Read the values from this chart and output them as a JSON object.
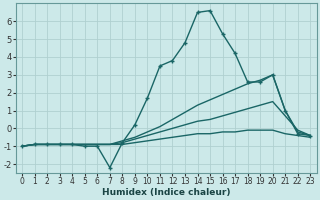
{
  "title": "",
  "xlabel": "Humidex (Indice chaleur)",
  "background_color": "#cce9e9",
  "grid_color": "#b0d0d0",
  "line_color": "#1a6666",
  "xlim": [
    -0.5,
    23.5
  ],
  "ylim": [
    -2.5,
    7.0
  ],
  "xticks": [
    0,
    1,
    2,
    3,
    4,
    5,
    6,
    7,
    8,
    9,
    10,
    11,
    12,
    13,
    14,
    15,
    16,
    17,
    18,
    19,
    20,
    21,
    22,
    23
  ],
  "yticks": [
    -2,
    -1,
    0,
    1,
    2,
    3,
    4,
    5,
    6
  ],
  "series": [
    {
      "x": [
        0,
        1,
        2,
        3,
        4,
        5,
        6,
        7,
        8,
        9,
        10,
        11,
        12,
        13,
        14,
        15,
        16,
        17,
        18,
        19,
        20,
        21,
        22,
        23
      ],
      "y": [
        -1.0,
        -0.9,
        -0.9,
        -0.9,
        -0.9,
        -0.9,
        -0.9,
        -0.9,
        -0.9,
        -0.8,
        -0.7,
        -0.6,
        -0.5,
        -0.4,
        -0.3,
        -0.3,
        -0.2,
        -0.2,
        -0.1,
        -0.1,
        -0.1,
        -0.3,
        -0.4,
        -0.5
      ],
      "marker": false,
      "linewidth": 1.0
    },
    {
      "x": [
        0,
        1,
        2,
        3,
        4,
        5,
        6,
        7,
        8,
        9,
        10,
        11,
        12,
        13,
        14,
        15,
        16,
        17,
        18,
        19,
        20,
        21,
        22,
        23
      ],
      "y": [
        -1.0,
        -0.9,
        -0.9,
        -0.9,
        -0.9,
        -0.9,
        -0.9,
        -0.9,
        -0.8,
        -0.6,
        -0.4,
        -0.2,
        0.0,
        0.2,
        0.4,
        0.5,
        0.7,
        0.9,
        1.1,
        1.3,
        1.5,
        0.7,
        -0.1,
        -0.4
      ],
      "marker": false,
      "linewidth": 1.0
    },
    {
      "x": [
        0,
        1,
        2,
        3,
        4,
        5,
        6,
        7,
        8,
        9,
        10,
        11,
        12,
        13,
        14,
        15,
        16,
        17,
        18,
        19,
        20,
        21,
        22,
        23
      ],
      "y": [
        -1.0,
        -0.9,
        -0.9,
        -0.9,
        -0.9,
        -0.9,
        -0.9,
        -0.9,
        -0.7,
        -0.5,
        -0.2,
        0.1,
        0.5,
        0.9,
        1.3,
        1.6,
        1.9,
        2.2,
        2.5,
        2.7,
        3.0,
        1.0,
        -0.2,
        -0.4
      ],
      "marker": false,
      "linewidth": 1.0
    },
    {
      "x": [
        0,
        1,
        2,
        3,
        4,
        5,
        6,
        7,
        8,
        9,
        10,
        11,
        12,
        13,
        14,
        15,
        16,
        17,
        18,
        19,
        20,
        21,
        22,
        23
      ],
      "y": [
        -1.0,
        -0.9,
        -0.9,
        -0.9,
        -0.9,
        -1.0,
        -1.0,
        -2.2,
        -0.8,
        0.2,
        1.7,
        3.5,
        3.8,
        4.8,
        6.5,
        6.6,
        5.3,
        4.2,
        2.6,
        2.6,
        3.0,
        1.0,
        -0.3,
        -0.4
      ],
      "marker": true,
      "linewidth": 1.0
    }
  ]
}
